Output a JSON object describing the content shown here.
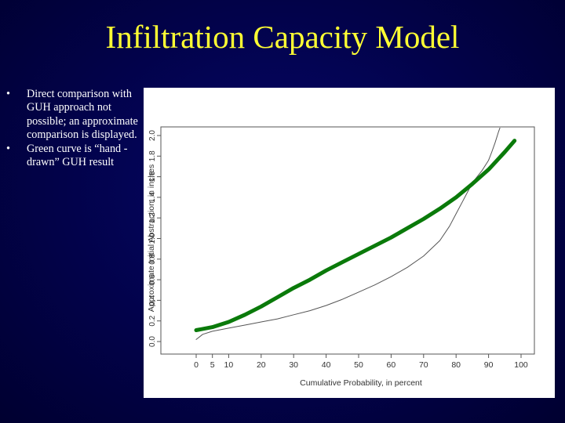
{
  "slide": {
    "title": "Infiltration Capacity Model",
    "bullets": [
      {
        "marker": "•",
        "text": "Direct comparison with GUH approach not possible; an approximate comparison is displayed."
      },
      {
        "marker": "•",
        "text": "Green curve is “hand -drawn” GUH result"
      }
    ]
  },
  "chart_data": {
    "type": "line",
    "title": "",
    "xlabel": "Cumulative Probability, in percent",
    "ylabel": "Approximate Initial Abstraction, in inches",
    "xlim": [
      0,
      100
    ],
    "ylim": [
      0.0,
      2.0
    ],
    "x_ticks": [
      0,
      5,
      10,
      20,
      30,
      40,
      50,
      60,
      70,
      80,
      90,
      100
    ],
    "y_ticks": [
      "0.0",
      "0.2",
      "0.4",
      "0.6",
      "0.8",
      "1.0",
      "1.2",
      "1.4",
      "1.6",
      "1.8",
      "2.0"
    ],
    "grid": false,
    "series": [
      {
        "style": "thin",
        "color": "#555555",
        "x": [
          0,
          2,
          5,
          10,
          15,
          20,
          25,
          30,
          35,
          40,
          45,
          50,
          55,
          60,
          65,
          70,
          75,
          78,
          80,
          82,
          84,
          86,
          88,
          90,
          91,
          92,
          93,
          94
        ],
        "y": [
          0.02,
          0.07,
          0.1,
          0.13,
          0.16,
          0.19,
          0.22,
          0.26,
          0.3,
          0.35,
          0.41,
          0.48,
          0.55,
          0.63,
          0.72,
          0.83,
          0.98,
          1.12,
          1.24,
          1.36,
          1.48,
          1.58,
          1.66,
          1.76,
          1.84,
          1.93,
          2.03,
          2.12
        ]
      },
      {
        "style": "thick",
        "color": "#0a7a0a",
        "x": [
          0,
          5,
          10,
          15,
          20,
          25,
          30,
          35,
          40,
          45,
          50,
          55,
          60,
          65,
          70,
          75,
          80,
          85,
          90,
          95,
          98
        ],
        "y": [
          0.11,
          0.14,
          0.19,
          0.26,
          0.34,
          0.43,
          0.52,
          0.6,
          0.69,
          0.77,
          0.85,
          0.93,
          1.01,
          1.1,
          1.19,
          1.29,
          1.4,
          1.53,
          1.67,
          1.84,
          1.95
        ]
      }
    ]
  }
}
